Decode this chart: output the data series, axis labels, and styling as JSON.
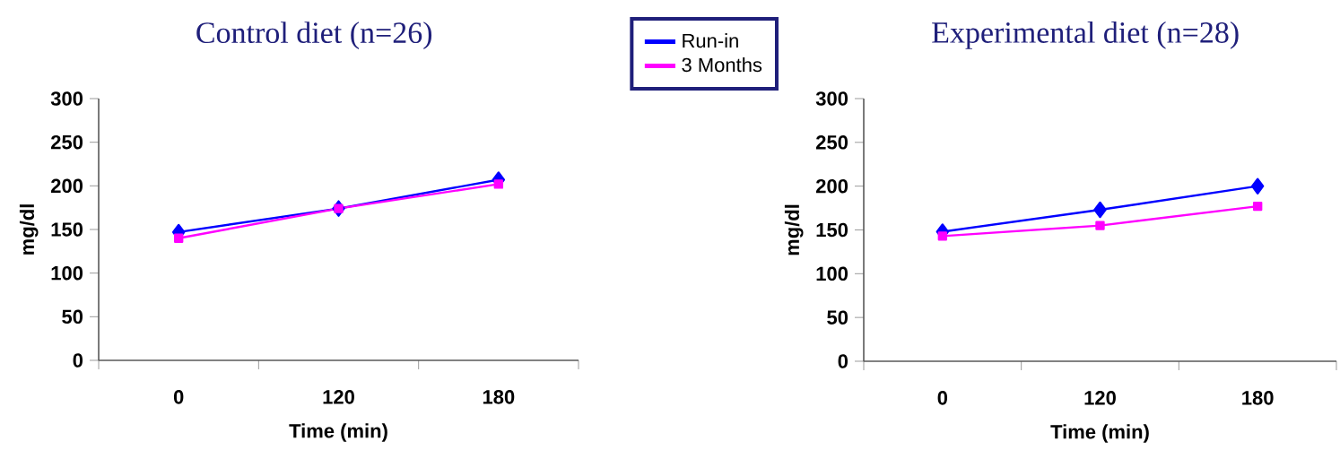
{
  "chart_data": [
    {
      "type": "line",
      "title": "Control diet (n=26)",
      "xlabel": "Time (min)",
      "ylabel": "mg/dl",
      "categories": [
        "0",
        "120",
        "180"
      ],
      "ylim": [
        0,
        300
      ],
      "yticks": [
        0,
        50,
        100,
        150,
        200,
        250,
        300
      ],
      "legend": "top right",
      "series": [
        {
          "name": "Run-in",
          "color": "#0000ff",
          "marker": "diamond",
          "values": [
            147,
            174,
            207
          ]
        },
        {
          "name": "3 Months",
          "color": "#ff00ff",
          "marker": "square",
          "values": [
            140,
            174,
            202
          ]
        }
      ]
    },
    {
      "type": "line",
      "title": "Experimental diet (n=28)",
      "xlabel": "Time (min)",
      "ylabel": "mg/dl",
      "categories": [
        "0",
        "120",
        "180"
      ],
      "ylim": [
        0,
        300
      ],
      "yticks": [
        0,
        50,
        100,
        150,
        200,
        250,
        300
      ],
      "series": [
        {
          "color": "#0000ff",
          "marker": "diamond",
          "values": [
            148,
            173,
            200
          ]
        },
        {
          "color": "#ff00ff",
          "marker": "square",
          "values": [
            143,
            155,
            177
          ]
        }
      ]
    }
  ]
}
